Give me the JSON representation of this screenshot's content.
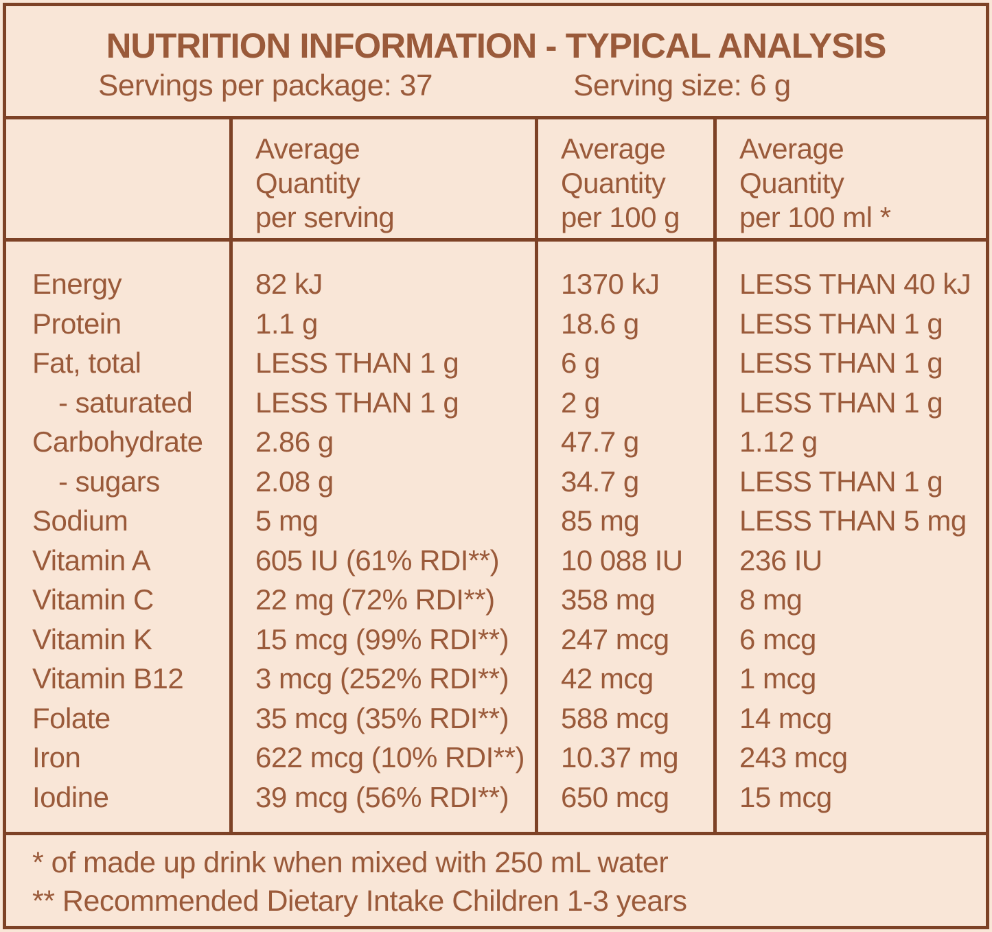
{
  "header": {
    "title": "NUTRITION INFORMATION - TYPICAL ANALYSIS",
    "servings_per_package": "Servings per package: 37",
    "serving_size": "Serving size: 6 g"
  },
  "columns": {
    "per_serving": "Average\nQuantity\nper serving",
    "per_100g": "Average\nQuantity\nper 100 g",
    "per_100ml": "Average\nQuantity\nper 100 ml *"
  },
  "rows": [
    {
      "name": "Energy",
      "indent": false,
      "per_serving": "82 kJ",
      "per_100g": "1370 kJ",
      "per_100ml": "LESS THAN 40 kJ"
    },
    {
      "name": "Protein",
      "indent": false,
      "per_serving": "1.1 g",
      "per_100g": "18.6 g",
      "per_100ml": "LESS THAN 1 g"
    },
    {
      "name": "Fat, total",
      "indent": false,
      "per_serving": "LESS THAN 1 g",
      "per_100g": "6 g",
      "per_100ml": "LESS THAN 1 g"
    },
    {
      "name": "- saturated",
      "indent": true,
      "per_serving": "LESS THAN 1 g",
      "per_100g": "2 g",
      "per_100ml": "LESS THAN 1 g"
    },
    {
      "name": "Carbohydrate",
      "indent": false,
      "per_serving": "2.86 g",
      "per_100g": "47.7 g",
      "per_100ml": "1.12 g"
    },
    {
      "name": "- sugars",
      "indent": true,
      "per_serving": "2.08 g",
      "per_100g": "34.7 g",
      "per_100ml": "LESS THAN 1 g"
    },
    {
      "name": "Sodium",
      "indent": false,
      "per_serving": "5 mg",
      "per_100g": "85 mg",
      "per_100ml": "LESS THAN 5 mg"
    },
    {
      "name": "Vitamin A",
      "indent": false,
      "per_serving": "605 IU (61% RDI**)",
      "per_100g": "10 088 IU",
      "per_100ml": "236 IU"
    },
    {
      "name": "Vitamin C",
      "indent": false,
      "per_serving": "22 mg (72% RDI**)",
      "per_100g": "358 mg",
      "per_100ml": "8 mg"
    },
    {
      "name": "Vitamin K",
      "indent": false,
      "per_serving": "15 mcg (99% RDI**)",
      "per_100g": "247 mcg",
      "per_100ml": "6 mcg"
    },
    {
      "name": "Vitamin B12",
      "indent": false,
      "per_serving": "3 mcg (252% RDI**)",
      "per_100g": "42 mcg",
      "per_100ml": "1 mcg"
    },
    {
      "name": "Folate",
      "indent": false,
      "per_serving": "35 mcg (35% RDI**)",
      "per_100g": "588 mcg",
      "per_100ml": "14 mcg"
    },
    {
      "name": "Iron",
      "indent": false,
      "per_serving": "622 mcg (10% RDI**)",
      "per_100g": "10.37 mg",
      "per_100ml": "243 mcg"
    },
    {
      "name": "Iodine",
      "indent": false,
      "per_serving": "39 mcg (56% RDI**)",
      "per_100g": "650 mcg",
      "per_100ml": "15 mcg"
    }
  ],
  "footnotes": [
    "* of made up drink when mixed with 250 mL water",
    "** Recommended Dietary Intake Children 1-3 years"
  ],
  "colors": {
    "background": "#f9e6d7",
    "line": "#7d4226",
    "text": "#9a5a3a"
  }
}
